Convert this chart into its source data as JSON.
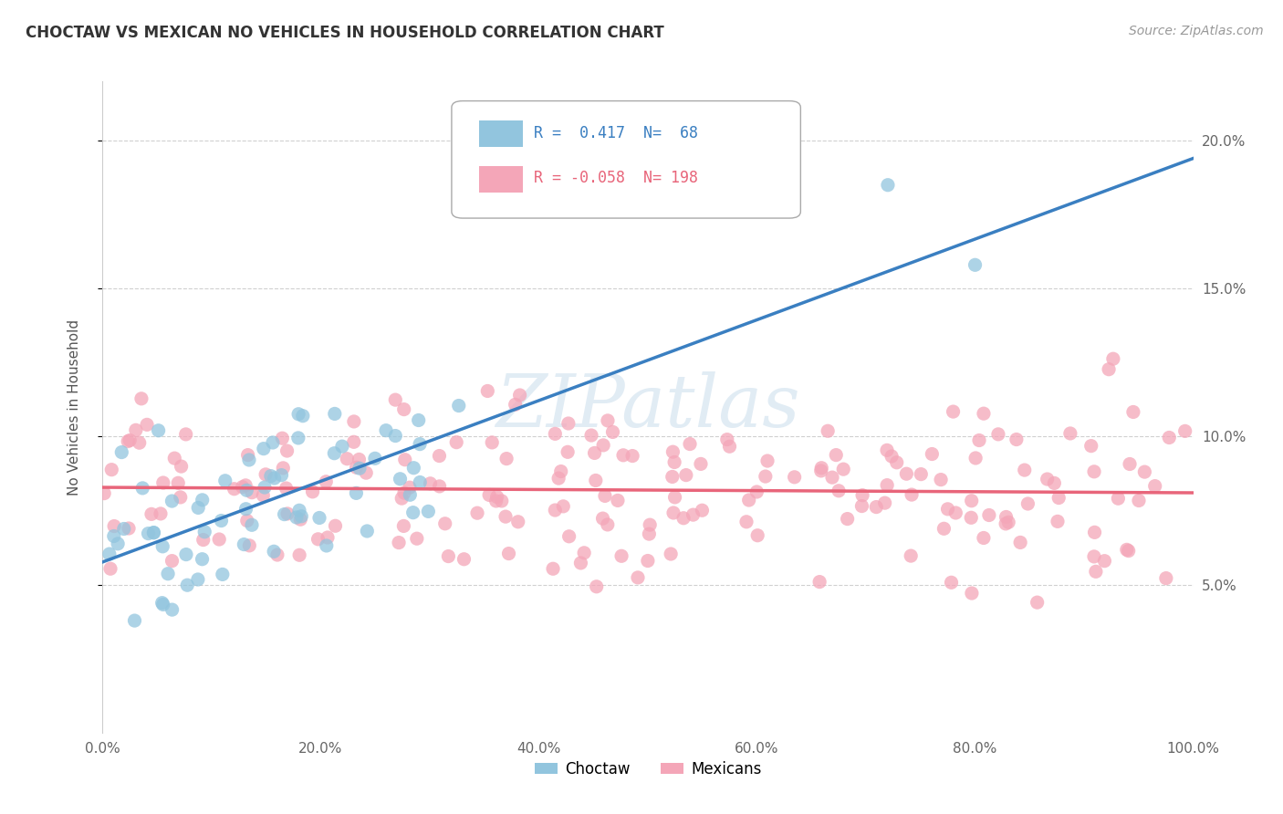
{
  "title": "CHOCTAW VS MEXICAN NO VEHICLES IN HOUSEHOLD CORRELATION CHART",
  "source": "Source: ZipAtlas.com",
  "ylabel": "No Vehicles in Household",
  "watermark": "ZIPatlas",
  "choctaw_R": 0.417,
  "choctaw_N": 68,
  "mexican_R": -0.058,
  "mexican_N": 198,
  "choctaw_color": "#92c5de",
  "mexican_color": "#f4a6b8",
  "choctaw_line_color": "#3a7fc1",
  "mexican_line_color": "#e8657a",
  "xlim": [
    0,
    100
  ],
  "ylim": [
    0,
    22
  ],
  "xticks": [
    0,
    20,
    40,
    60,
    80,
    100
  ],
  "yticks": [
    5,
    10,
    15,
    20
  ],
  "xticklabels": [
    "0.0%",
    "20.0%",
    "40.0%",
    "60.0%",
    "80.0%",
    "100.0%"
  ],
  "yticklabels": [
    "5.0%",
    "10.0%",
    "15.0%",
    "20.0%"
  ],
  "background_color": "#ffffff",
  "grid_color": "#d0d0d0",
  "choctaw_seed": 42,
  "mexican_seed": 7,
  "marker_size": 120
}
